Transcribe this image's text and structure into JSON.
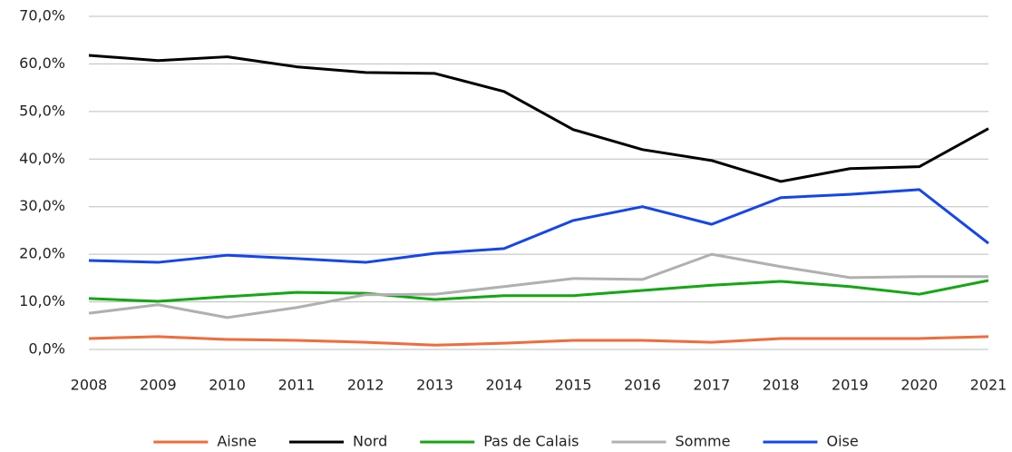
{
  "chart_data": {
    "type": "line",
    "categories": [
      "2008",
      "2009",
      "2010",
      "2011",
      "2012",
      "2013",
      "2014",
      "2015",
      "2016",
      "2017",
      "2018",
      "2019",
      "2020",
      "2021"
    ],
    "series": [
      {
        "name": "Aisne",
        "color": "#f26b3a",
        "values": [
          2.3,
          2.7,
          2.1,
          1.9,
          1.5,
          0.9,
          1.3,
          1.9,
          1.9,
          1.5,
          2.3,
          2.3,
          2.3,
          2.7
        ]
      },
      {
        "name": "Nord",
        "color": "#000000",
        "values": [
          61.8,
          60.7,
          61.5,
          59.4,
          58.2,
          58.0,
          54.2,
          46.2,
          42.0,
          39.7,
          35.3,
          38.0,
          38.4,
          46.4
        ]
      },
      {
        "name": "Pas de Calais",
        "color": "#13a813",
        "values": [
          10.7,
          10.1,
          11.1,
          12.0,
          11.8,
          10.5,
          11.3,
          11.3,
          12.4,
          13.5,
          14.3,
          13.2,
          11.6,
          14.5
        ]
      },
      {
        "name": "Somme",
        "color": "#b0b0b0",
        "values": [
          7.6,
          9.4,
          6.7,
          8.8,
          11.5,
          11.6,
          13.2,
          14.9,
          14.7,
          20.0,
          17.4,
          15.1,
          15.3,
          15.3
        ]
      },
      {
        "name": "Oise",
        "color": "#1446f0",
        "values": [
          18.7,
          18.3,
          19.8,
          19.1,
          18.3,
          20.2,
          21.2,
          27.1,
          30.0,
          26.3,
          31.9,
          32.6,
          33.6,
          22.3
        ]
      }
    ],
    "ylim": [
      0,
      70
    ],
    "yticks": [
      {
        "value": 0,
        "label": "0,0%"
      },
      {
        "value": 10,
        "label": "10,0%"
      },
      {
        "value": 20,
        "label": "20,0%"
      },
      {
        "value": 30,
        "label": "30,0%"
      },
      {
        "value": 40,
        "label": "40,0%"
      },
      {
        "value": 50,
        "label": "50,0%"
      },
      {
        "value": 60,
        "label": "60,0%"
      },
      {
        "value": 70,
        "label": "70,0%"
      }
    ],
    "grid": true,
    "legend": "bottom"
  }
}
